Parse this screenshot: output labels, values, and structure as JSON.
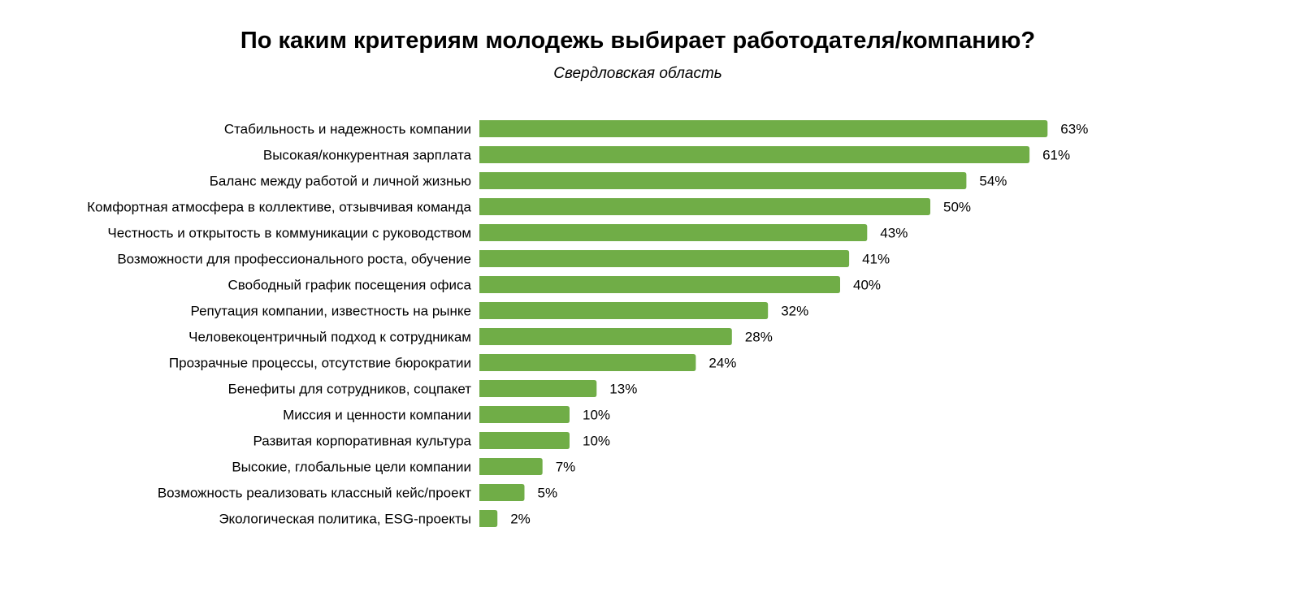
{
  "chart_data": {
    "type": "bar",
    "orientation": "horizontal",
    "title": "По каким критериям молодежь выбирает работодателя/компанию?",
    "subtitle": "Свердловская область",
    "categories": [
      "Стабильность и надежность компании",
      "Высокая/конкурентная зарплата",
      "Баланс между работой и личной жизнью",
      "Комфортная атмосфера в коллективе, отзывчивая команда",
      "Честность и открытость в коммуникации с руководством",
      "Возможности для профессионального роста, обучение",
      "Свободный график посещения офиса",
      "Репутация компании, известность на рынке",
      "Человекоцентричный подход к сотрудникам",
      "Прозрачные процессы, отсутствие бюрократии",
      "Бенефиты для сотрудников, соцпакет",
      "Миссия и ценности компании",
      "Развитая корпоративная культура",
      "Высокие, глобальные цели компании",
      "Возможность реализовать классный кейс/проект",
      "Экологическая политика, ESG-проекты"
    ],
    "values": [
      63,
      61,
      54,
      50,
      43,
      41,
      40,
      32,
      28,
      24,
      13,
      10,
      10,
      7,
      5,
      2
    ],
    "unit": "%",
    "grid": false,
    "axis_visible": false,
    "bar_color": "#70ad47"
  }
}
